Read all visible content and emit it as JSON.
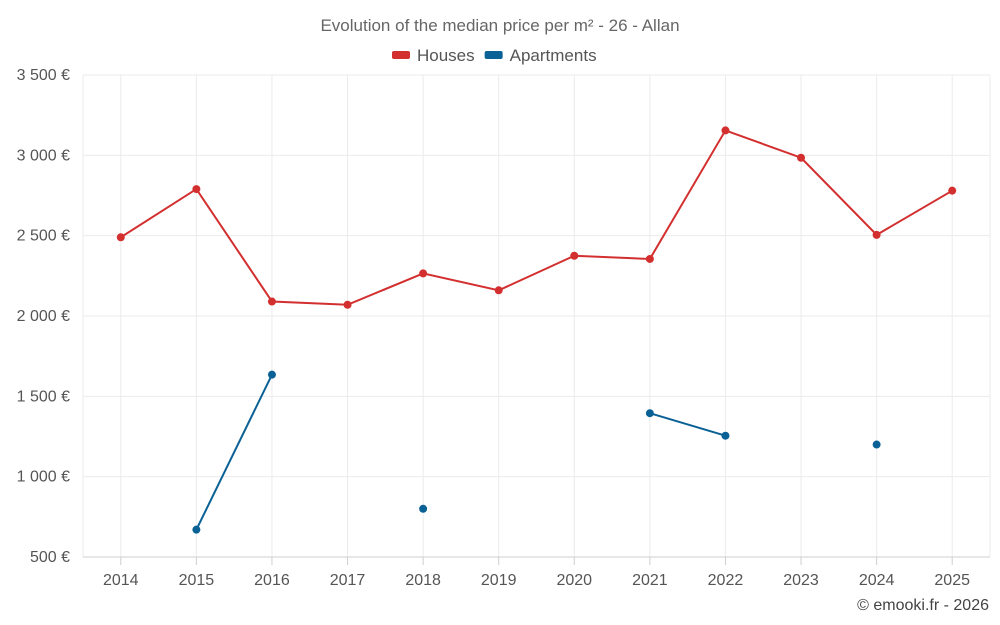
{
  "chart_data": {
    "type": "line",
    "title": "Evolution of the median price per m² - 26 - Allan",
    "categories": [
      "2014",
      "2015",
      "2016",
      "2017",
      "2018",
      "2019",
      "2020",
      "2021",
      "2022",
      "2023",
      "2024",
      "2025"
    ],
    "ylim": [
      500,
      3500
    ],
    "y_ticks": [
      500,
      1000,
      1500,
      2000,
      2500,
      3000,
      3500
    ],
    "y_tick_labels": [
      "500 €",
      "1 000 €",
      "1 500 €",
      "2 000 €",
      "2 500 €",
      "3 000 €",
      "3 500 €"
    ],
    "legend_position": "top-center",
    "grid": true,
    "series": [
      {
        "name": "Houses",
        "color": "#d32f2f",
        "values": [
          2490,
          2790,
          2090,
          2070,
          2265,
          2160,
          2375,
          2355,
          3155,
          2985,
          2505,
          2780
        ]
      },
      {
        "name": "Apartments",
        "color": "#0a6195",
        "values": [
          null,
          670,
          1635,
          null,
          800,
          null,
          null,
          1395,
          1255,
          null,
          1200,
          null
        ]
      }
    ]
  },
  "credit": "© emooki.fr - 2026"
}
